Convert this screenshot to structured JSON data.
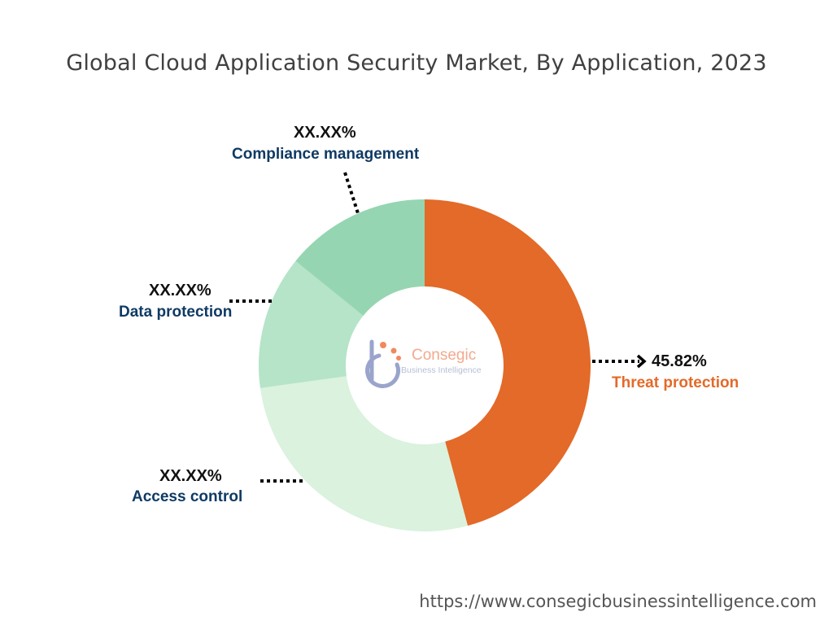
{
  "chart_data": {
    "type": "pie",
    "title": "Global Cloud Application Security Market, By Application, 2023",
    "categories": [
      "Threat protection",
      "Access control",
      "Data protection",
      "Compliance management"
    ],
    "labels": [
      "45.82%",
      "XX.XX%",
      "XX.XX%",
      "XX.XX%"
    ],
    "values": [
      45.82,
      27.0,
      13.0,
      14.18
    ],
    "colors": [
      "#e36a28",
      "#daf2de",
      "#b5e4c8",
      "#96d5b2"
    ],
    "label_colors": [
      "#e36a28",
      "#0f3a64",
      "#0f3a64",
      "#0f3a64"
    ],
    "donut": true,
    "legend": "none"
  },
  "logo": {
    "brand": "Consegic",
    "subtitle": "Business Intelligence",
    "colors": [
      "#f08a5d",
      "#8a96c2"
    ]
  },
  "footer": {
    "url": "https://www.consegicbusinessintelligence.com"
  }
}
